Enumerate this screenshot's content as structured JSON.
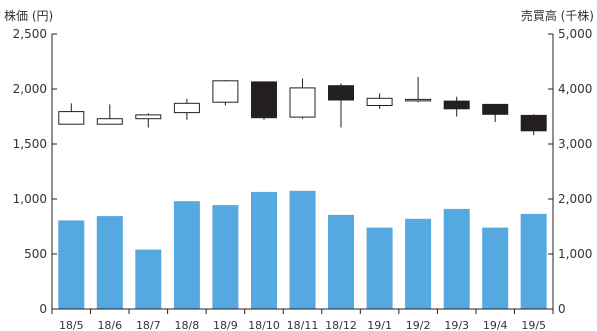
{
  "chart_data": {
    "type": "candlestick+bar",
    "left_axis_title": "株価 (円)",
    "right_axis_title": "売買高 (千株)",
    "left_ylim": [
      0,
      2500
    ],
    "right_ylim": [
      0,
      5000
    ],
    "left_ticks": [
      "0",
      "500",
      "1,000",
      "1,500",
      "2,000",
      "2,500"
    ],
    "right_ticks": [
      "0",
      "1,000",
      "2,000",
      "3,000",
      "4,000",
      "5,000"
    ],
    "left_tick_values": [
      0,
      500,
      1000,
      1500,
      2000,
      2500
    ],
    "right_tick_values": [
      0,
      1000,
      2000,
      3000,
      4000,
      5000
    ],
    "categories": [
      "18/5",
      "18/6",
      "18/7",
      "18/8",
      "18/9",
      "18/10",
      "18/11",
      "18/12",
      "19/1",
      "19/2",
      "19/3",
      "19/4",
      "19/5"
    ],
    "price": [
      {
        "open": 1680,
        "close": 1795,
        "high": 1870,
        "low": 1680
      },
      {
        "open": 1680,
        "close": 1730,
        "high": 1860,
        "low": 1680
      },
      {
        "open": 1730,
        "close": 1765,
        "high": 1780,
        "low": 1650
      },
      {
        "open": 1785,
        "close": 1870,
        "high": 1910,
        "low": 1720
      },
      {
        "open": 1880,
        "close": 2075,
        "high": 2080,
        "low": 1850
      },
      {
        "open": 2065,
        "close": 1740,
        "high": 2065,
        "low": 1720
      },
      {
        "open": 1745,
        "close": 2010,
        "high": 2095,
        "low": 1730
      },
      {
        "open": 2030,
        "close": 1900,
        "high": 2050,
        "low": 1650
      },
      {
        "open": 1850,
        "close": 1915,
        "high": 1960,
        "low": 1820
      },
      {
        "open": 1895,
        "close": 1905,
        "high": 2110,
        "low": 1880
      },
      {
        "open": 1890,
        "close": 1820,
        "high": 1930,
        "low": 1750
      },
      {
        "open": 1860,
        "close": 1770,
        "high": 1860,
        "low": 1700
      },
      {
        "open": 1760,
        "close": 1620,
        "high": 1770,
        "low": 1580
      }
    ],
    "volume": [
      1610,
      1690,
      1080,
      1960,
      1890,
      2130,
      2150,
      1710,
      1480,
      1640,
      1820,
      1480,
      1730
    ],
    "colors": {
      "bar": "#56a8e0",
      "down_candle": "#231f20",
      "up_candle": "#ffffff",
      "outline": "#231f20",
      "axis": "#231f20"
    }
  }
}
